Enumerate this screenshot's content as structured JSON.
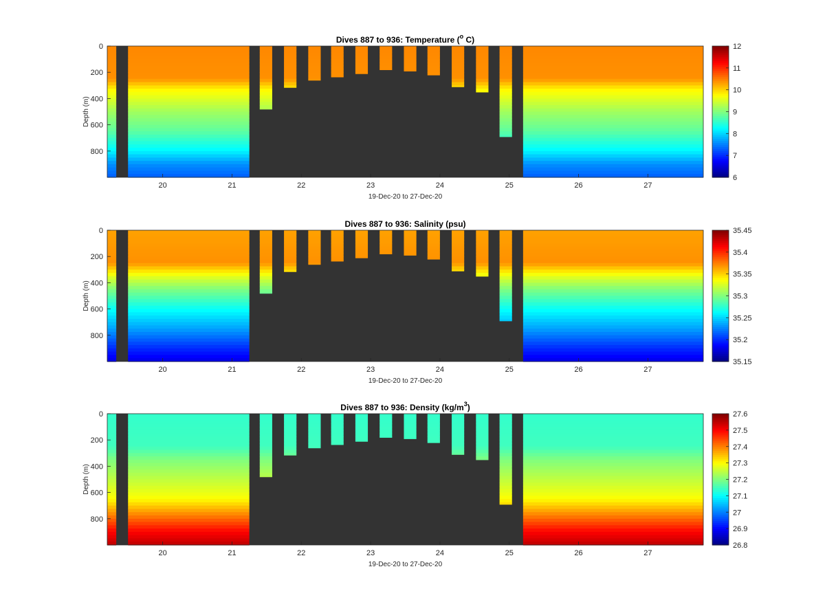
{
  "chart_data": [
    {
      "type": "heatmap",
      "title": "Dives 887 to 936: Temperature (",
      "title_sup": "o",
      "title_suffix": " C)",
      "xlabel": "19-Dec-20 to 27-Dec-20",
      "ylabel": "Depth (m)",
      "x_ticks": [
        20,
        21,
        22,
        23,
        24,
        25,
        26,
        27
      ],
      "xlim": [
        19.2,
        27.8
      ],
      "y_ticks": [
        0,
        200,
        400,
        600,
        800
      ],
      "ylim": [
        0,
        1000
      ],
      "y_reversed": true,
      "colorbar": {
        "ticks": [
          6,
          7,
          8,
          9,
          10,
          11,
          12
        ],
        "range": [
          6,
          12
        ],
        "colormap": "jet"
      },
      "background_color": "#333333",
      "dive_columns": [
        {
          "x0": 19.2,
          "x1": 19.33,
          "max_depth": 1000
        },
        {
          "x0": 19.5,
          "x1": 21.25,
          "max_depth": 1000
        },
        {
          "x0": 21.4,
          "x1": 21.58,
          "max_depth": 480
        },
        {
          "x0": 21.75,
          "x1": 21.93,
          "max_depth": 315
        },
        {
          "x0": 22.1,
          "x1": 22.28,
          "max_depth": 260
        },
        {
          "x0": 22.43,
          "x1": 22.61,
          "max_depth": 235
        },
        {
          "x0": 22.78,
          "x1": 22.96,
          "max_depth": 210
        },
        {
          "x0": 23.13,
          "x1": 23.31,
          "max_depth": 180
        },
        {
          "x0": 23.48,
          "x1": 23.66,
          "max_depth": 190
        },
        {
          "x0": 23.82,
          "x1": 24.0,
          "max_depth": 220
        },
        {
          "x0": 24.17,
          "x1": 24.35,
          "max_depth": 310
        },
        {
          "x0": 24.52,
          "x1": 24.7,
          "max_depth": 350
        },
        {
          "x0": 24.86,
          "x1": 25.04,
          "max_depth": 690
        },
        {
          "x0": 25.2,
          "x1": 27.8,
          "max_depth": 1000
        }
      ],
      "profile": [
        {
          "depth": 0,
          "value": 10.45
        },
        {
          "depth": 250,
          "value": 10.4
        },
        {
          "depth": 330,
          "value": 9.8
        },
        {
          "depth": 500,
          "value": 9.2
        },
        {
          "depth": 650,
          "value": 8.8
        },
        {
          "depth": 800,
          "value": 8.2
        },
        {
          "depth": 900,
          "value": 7.6
        },
        {
          "depth": 1000,
          "value": 7.3
        }
      ]
    },
    {
      "type": "heatmap",
      "title": "Dives 887 to 936: Salinity (psu)",
      "title_sup": "",
      "title_suffix": "",
      "xlabel": "19-Dec-20 to 27-Dec-20",
      "ylabel": "Depth (m)",
      "x_ticks": [
        20,
        21,
        22,
        23,
        24,
        25,
        26,
        27
      ],
      "xlim": [
        19.2,
        27.8
      ],
      "y_ticks": [
        0,
        200,
        400,
        600,
        800
      ],
      "ylim": [
        0,
        1000
      ],
      "y_reversed": true,
      "colorbar": {
        "ticks": [
          "35.15",
          "35.2",
          "35.25",
          "35.3",
          "35.35",
          "35.4",
          "35.45"
        ],
        "range": [
          35.15,
          35.45
        ],
        "colormap": "jet"
      },
      "background_color": "#333333",
      "dive_columns": [
        {
          "x0": 19.2,
          "x1": 19.33,
          "max_depth": 1000
        },
        {
          "x0": 19.5,
          "x1": 21.25,
          "max_depth": 1000
        },
        {
          "x0": 21.4,
          "x1": 21.58,
          "max_depth": 480
        },
        {
          "x0": 21.75,
          "x1": 21.93,
          "max_depth": 315
        },
        {
          "x0": 22.1,
          "x1": 22.28,
          "max_depth": 260
        },
        {
          "x0": 22.43,
          "x1": 22.61,
          "max_depth": 235
        },
        {
          "x0": 22.78,
          "x1": 22.96,
          "max_depth": 210
        },
        {
          "x0": 23.13,
          "x1": 23.31,
          "max_depth": 180
        },
        {
          "x0": 23.48,
          "x1": 23.66,
          "max_depth": 190
        },
        {
          "x0": 23.82,
          "x1": 24.0,
          "max_depth": 220
        },
        {
          "x0": 24.17,
          "x1": 24.35,
          "max_depth": 310
        },
        {
          "x0": 24.52,
          "x1": 24.7,
          "max_depth": 350
        },
        {
          "x0": 24.86,
          "x1": 25.04,
          "max_depth": 690
        },
        {
          "x0": 25.2,
          "x1": 27.8,
          "max_depth": 1000
        }
      ],
      "profile": [
        {
          "depth": 0,
          "value": 35.365
        },
        {
          "depth": 250,
          "value": 35.37
        },
        {
          "depth": 350,
          "value": 35.33
        },
        {
          "depth": 450,
          "value": 35.3
        },
        {
          "depth": 600,
          "value": 35.265
        },
        {
          "depth": 750,
          "value": 35.235
        },
        {
          "depth": 900,
          "value": 35.2
        },
        {
          "depth": 1000,
          "value": 35.18
        }
      ]
    },
    {
      "type": "heatmap",
      "title": "Dives 887 to 936: Density (kg/m",
      "title_sup": "3",
      "title_suffix": ")",
      "xlabel": "19-Dec-20 to 27-Dec-20",
      "ylabel": "Depth (m)",
      "x_ticks": [
        20,
        21,
        22,
        23,
        24,
        25,
        26,
        27
      ],
      "xlim": [
        19.2,
        27.8
      ],
      "y_ticks": [
        0,
        200,
        400,
        600,
        800
      ],
      "ylim": [
        0,
        1000
      ],
      "y_reversed": true,
      "colorbar": {
        "ticks": [
          "26.8",
          "26.9",
          "27",
          "27.1",
          "27.2",
          "27.3",
          "27.4",
          "27.5",
          "27.6"
        ],
        "range": [
          26.8,
          27.6
        ],
        "colormap": "jet"
      },
      "background_color": "#333333",
      "dive_columns": [
        {
          "x0": 19.2,
          "x1": 19.33,
          "max_depth": 1000
        },
        {
          "x0": 19.5,
          "x1": 21.25,
          "max_depth": 1000
        },
        {
          "x0": 21.4,
          "x1": 21.58,
          "max_depth": 480
        },
        {
          "x0": 21.75,
          "x1": 21.93,
          "max_depth": 315
        },
        {
          "x0": 22.1,
          "x1": 22.28,
          "max_depth": 260
        },
        {
          "x0": 22.43,
          "x1": 22.61,
          "max_depth": 235
        },
        {
          "x0": 22.78,
          "x1": 22.96,
          "max_depth": 210
        },
        {
          "x0": 23.13,
          "x1": 23.31,
          "max_depth": 180
        },
        {
          "x0": 23.48,
          "x1": 23.66,
          "max_depth": 190
        },
        {
          "x0": 23.82,
          "x1": 24.0,
          "max_depth": 220
        },
        {
          "x0": 24.17,
          "x1": 24.35,
          "max_depth": 310
        },
        {
          "x0": 24.52,
          "x1": 24.7,
          "max_depth": 350
        },
        {
          "x0": 24.86,
          "x1": 25.04,
          "max_depth": 690
        },
        {
          "x0": 25.2,
          "x1": 27.8,
          "max_depth": 1000
        }
      ],
      "profile": [
        {
          "depth": 0,
          "value": 27.14
        },
        {
          "depth": 250,
          "value": 27.15
        },
        {
          "depth": 350,
          "value": 27.2
        },
        {
          "depth": 500,
          "value": 27.25
        },
        {
          "depth": 650,
          "value": 27.3
        },
        {
          "depth": 800,
          "value": 27.42
        },
        {
          "depth": 900,
          "value": 27.5
        },
        {
          "depth": 1000,
          "value": 27.55
        }
      ]
    }
  ]
}
